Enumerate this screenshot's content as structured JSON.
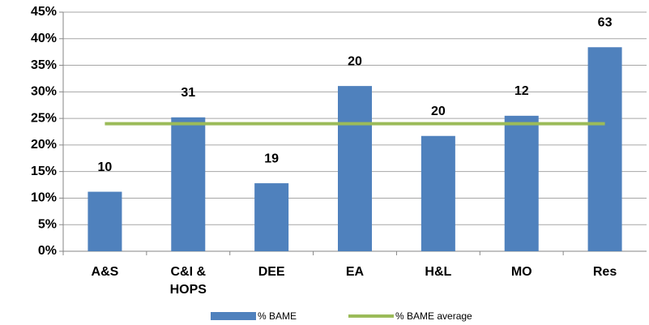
{
  "chart_data": {
    "type": "bar",
    "categories": [
      "A&S",
      "C&I & HOPS",
      "DEE",
      "EA",
      "H&L",
      "MO",
      "Res"
    ],
    "series": [
      {
        "name": "% BAME",
        "type": "bar",
        "color": "#4f81bd",
        "values": [
          11.2,
          25.2,
          12.8,
          31.1,
          21.7,
          25.5,
          38.4
        ]
      },
      {
        "name": "% BAME average",
        "type": "line",
        "color": "#9bbb59",
        "values": [
          24,
          24,
          24,
          24,
          24,
          24,
          24
        ]
      }
    ],
    "annotations": [
      "10",
      "31",
      "19",
      "20",
      "20",
      "12",
      "63"
    ],
    "ylim": [
      0,
      45
    ],
    "yticks": [
      {
        "value": 0,
        "label": "0%"
      },
      {
        "value": 5,
        "label": "5%"
      },
      {
        "value": 10,
        "label": "10%"
      },
      {
        "value": 15,
        "label": "15%"
      },
      {
        "value": 20,
        "label": "20%"
      },
      {
        "value": 25,
        "label": "25%"
      },
      {
        "value": 30,
        "label": "30%"
      },
      {
        "value": 35,
        "label": "35%"
      },
      {
        "value": 40,
        "label": "40%"
      },
      {
        "value": 45,
        "label": "45%"
      }
    ],
    "grid": true,
    "legend": "bottom"
  }
}
